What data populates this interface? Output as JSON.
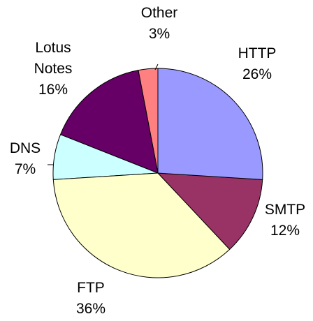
{
  "chart_data": {
    "type": "pie",
    "categories": [
      "HTTP",
      "SMTP",
      "FTP",
      "DNS",
      "Lotus Notes",
      "Other"
    ],
    "values": [
      26,
      12,
      36,
      7,
      16,
      3
    ],
    "value_labels": [
      "26%",
      "12%",
      "36%",
      "7%",
      "16%",
      "3%"
    ],
    "colors": [
      "#9999ff",
      "#993366",
      "#ffffcc",
      "#ccffff",
      "#660066",
      "#ff8080"
    ]
  }
}
